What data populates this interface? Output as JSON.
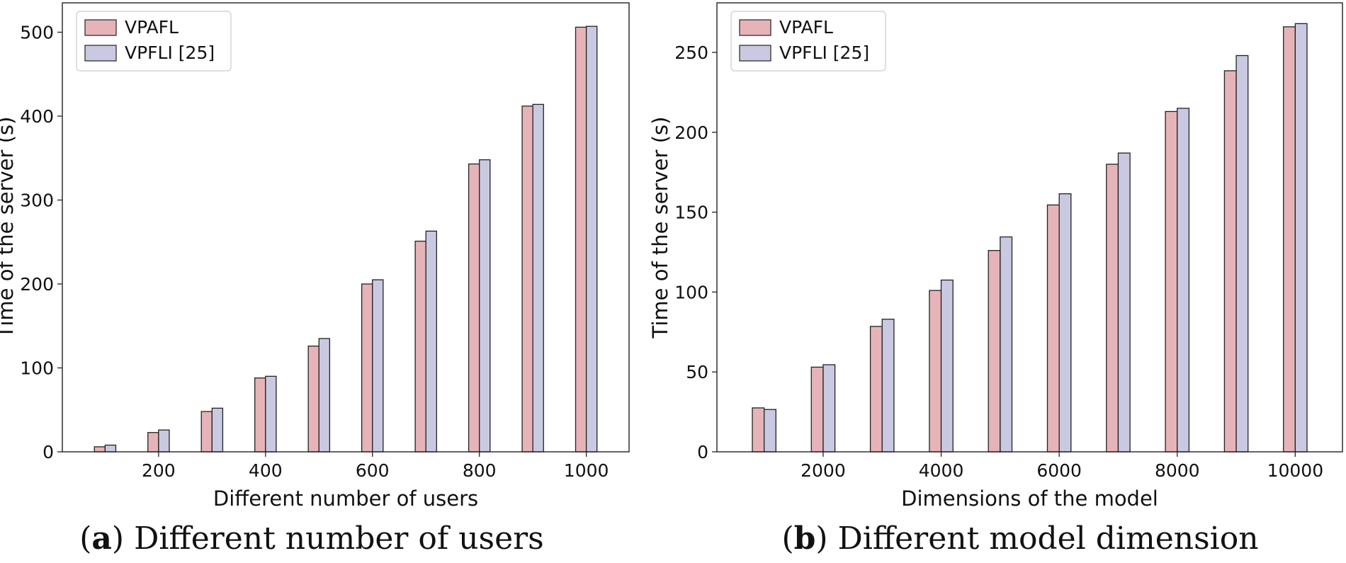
{
  "captions": {
    "a": {
      "open": "(",
      "letter": "a",
      "close": ")",
      "text": " Different number of users"
    },
    "b": {
      "open": "(",
      "letter": "b",
      "close": ")",
      "text": " Different model dimension"
    }
  },
  "colors": {
    "series0": "#e6b4b8",
    "series1": "#c9c9e1",
    "edge": "#222222"
  },
  "chart_data": [
    {
      "type": "bar",
      "xlabel": "Different number of users",
      "ylabel": "Time of the server (s)",
      "x": [
        100,
        200,
        300,
        400,
        500,
        600,
        700,
        800,
        900,
        1000
      ],
      "xticks": [
        200,
        400,
        600,
        800,
        1000
      ],
      "yticks": [
        0,
        100,
        200,
        300,
        400,
        500
      ],
      "xlim": [
        20,
        1080
      ],
      "ylim": [
        0,
        535
      ],
      "legend": "top-left",
      "grid": false,
      "series": [
        {
          "name": "VPAFL",
          "values": [
            6,
            23,
            48,
            88,
            126,
            200,
            251,
            343,
            412,
            506
          ]
        },
        {
          "name": "VPFLI [25]",
          "values": [
            8,
            26,
            52,
            90,
            135,
            205,
            263,
            348,
            414,
            507
          ]
        }
      ]
    },
    {
      "type": "bar",
      "xlabel": "Dimensions of the model",
      "ylabel": "Time of the server (s)",
      "x": [
        1000,
        2000,
        3000,
        4000,
        5000,
        6000,
        7000,
        8000,
        9000,
        10000
      ],
      "xticks": [
        2000,
        4000,
        6000,
        8000,
        10000
      ],
      "yticks": [
        0,
        50,
        100,
        150,
        200,
        250
      ],
      "xlim": [
        200,
        10800
      ],
      "ylim": [
        0,
        281
      ],
      "legend": "top-left",
      "grid": false,
      "series": [
        {
          "name": "VPAFL",
          "values": [
            27.5,
            53,
            78.5,
            101,
            126,
            154.5,
            180,
            213,
            238.5,
            266
          ]
        },
        {
          "name": "VPFLI [25]",
          "values": [
            26.5,
            54.5,
            83,
            107.5,
            134.5,
            161.5,
            187,
            215,
            248,
            268
          ]
        }
      ]
    }
  ]
}
